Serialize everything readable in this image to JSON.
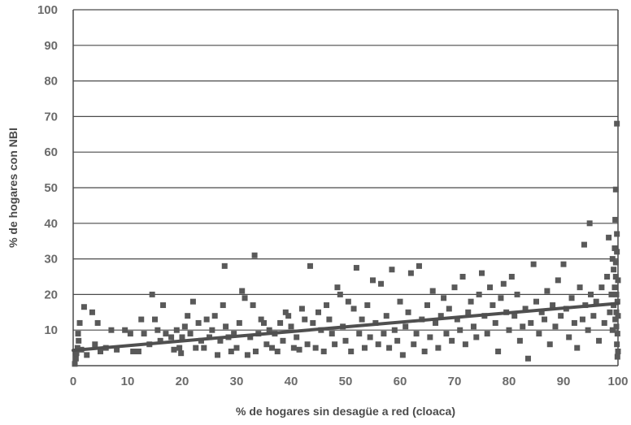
{
  "chart_data": {
    "type": "scatter",
    "title": "",
    "xlabel": "% de hogares sin desagüe a red (cloaca)",
    "ylabel": "% de hogares con NBI",
    "xlim": [
      0,
      100
    ],
    "ylim": [
      0,
      100
    ],
    "x_ticks": [
      "0",
      "10",
      "20",
      "30",
      "40",
      "50",
      "60",
      "70",
      "80",
      "90",
      "100"
    ],
    "y_ticks": [
      "10",
      "20",
      "30",
      "40",
      "50",
      "60",
      "70",
      "80",
      "90",
      "100"
    ],
    "grid": "horizontal",
    "colors": {
      "marker": "#595959",
      "trend": "#4f4f4f",
      "grid": "#4a4a4a",
      "text": "#6b6b6b"
    },
    "trendline": {
      "x": [
        0,
        100
      ],
      "y": [
        4.3,
        17.5
      ]
    },
    "points": [
      [
        0.3,
        0.5
      ],
      [
        0.5,
        2
      ],
      [
        0.6,
        3.5
      ],
      [
        0.8,
        5
      ],
      [
        1,
        7
      ],
      [
        0.9,
        9
      ],
      [
        1.2,
        12
      ],
      [
        1.5,
        4.5
      ],
      [
        2,
        16.5
      ],
      [
        2.5,
        3
      ],
      [
        3.5,
        15
      ],
      [
        4,
        6
      ],
      [
        4.5,
        12
      ],
      [
        5,
        4
      ],
      [
        6,
        5
      ],
      [
        7,
        10
      ],
      [
        8,
        4.5
      ],
      [
        9.5,
        10
      ],
      [
        10.5,
        9
      ],
      [
        11,
        4
      ],
      [
        12,
        4
      ],
      [
        12.5,
        13
      ],
      [
        13,
        9
      ],
      [
        14,
        6
      ],
      [
        14.5,
        20
      ],
      [
        15,
        13
      ],
      [
        15.5,
        10
      ],
      [
        16,
        7
      ],
      [
        16.5,
        17
      ],
      [
        17,
        9
      ],
      [
        18,
        8
      ],
      [
        18.5,
        4.5
      ],
      [
        19,
        10
      ],
      [
        19.5,
        5
      ],
      [
        19.8,
        3.5
      ],
      [
        20,
        8
      ],
      [
        20.5,
        11
      ],
      [
        21,
        14
      ],
      [
        21.5,
        9
      ],
      [
        22,
        18
      ],
      [
        22.5,
        5
      ],
      [
        23,
        12
      ],
      [
        23.5,
        7
      ],
      [
        24,
        5
      ],
      [
        24.5,
        13
      ],
      [
        25,
        8
      ],
      [
        25.5,
        10
      ],
      [
        26,
        14
      ],
      [
        26.5,
        3
      ],
      [
        27,
        7
      ],
      [
        27.5,
        17
      ],
      [
        27.8,
        28
      ],
      [
        28,
        11
      ],
      [
        28.5,
        8
      ],
      [
        29,
        4
      ],
      [
        29.5,
        9
      ],
      [
        30,
        5
      ],
      [
        30.5,
        12
      ],
      [
        31,
        21
      ],
      [
        31.5,
        19
      ],
      [
        32,
        3
      ],
      [
        32.5,
        8
      ],
      [
        33,
        17
      ],
      [
        33.3,
        31
      ],
      [
        33.5,
        4
      ],
      [
        34,
        9
      ],
      [
        34.5,
        13
      ],
      [
        35,
        12
      ],
      [
        35.5,
        6
      ],
      [
        36,
        10
      ],
      [
        36.5,
        5
      ],
      [
        37,
        9
      ],
      [
        37.5,
        4
      ],
      [
        38,
        12
      ],
      [
        38.5,
        7
      ],
      [
        39,
        15
      ],
      [
        39.5,
        14
      ],
      [
        40,
        11
      ],
      [
        40.5,
        5
      ],
      [
        41,
        8
      ],
      [
        41.5,
        4.5
      ],
      [
        42,
        16
      ],
      [
        42.5,
        13
      ],
      [
        43,
        6
      ],
      [
        43.5,
        28
      ],
      [
        44,
        12
      ],
      [
        44.5,
        5
      ],
      [
        45,
        15
      ],
      [
        45.5,
        10
      ],
      [
        46,
        4
      ],
      [
        46.5,
        17
      ],
      [
        47,
        13
      ],
      [
        47.5,
        9
      ],
      [
        48,
        6
      ],
      [
        48.5,
        22
      ],
      [
        49,
        20
      ],
      [
        49.5,
        11
      ],
      [
        50,
        7
      ],
      [
        50.5,
        18
      ],
      [
        51,
        4
      ],
      [
        51.5,
        16
      ],
      [
        52,
        27.5
      ],
      [
        52.5,
        9
      ],
      [
        53,
        13
      ],
      [
        53.5,
        5
      ],
      [
        54,
        17
      ],
      [
        54.5,
        8
      ],
      [
        55,
        24
      ],
      [
        55.5,
        12
      ],
      [
        56,
        6
      ],
      [
        56.5,
        23
      ],
      [
        57,
        9
      ],
      [
        57.5,
        14
      ],
      [
        58,
        5
      ],
      [
        58.5,
        27
      ],
      [
        59,
        10
      ],
      [
        59.5,
        7
      ],
      [
        60,
        18
      ],
      [
        60.5,
        3
      ],
      [
        61,
        11
      ],
      [
        61.5,
        15
      ],
      [
        62,
        26
      ],
      [
        62.5,
        6
      ],
      [
        63,
        9
      ],
      [
        63.5,
        28
      ],
      [
        64,
        13
      ],
      [
        64.5,
        4
      ],
      [
        65,
        17
      ],
      [
        65.5,
        8
      ],
      [
        66,
        21
      ],
      [
        66.5,
        12
      ],
      [
        67,
        5
      ],
      [
        67.5,
        14
      ],
      [
        68,
        19
      ],
      [
        68.5,
        9
      ],
      [
        69,
        16
      ],
      [
        69.5,
        7
      ],
      [
        70,
        22
      ],
      [
        70.5,
        13
      ],
      [
        71,
        10
      ],
      [
        71.5,
        25
      ],
      [
        72,
        6
      ],
      [
        72.5,
        15
      ],
      [
        73,
        18
      ],
      [
        73.5,
        11
      ],
      [
        74,
        8
      ],
      [
        74.5,
        20
      ],
      [
        75,
        26
      ],
      [
        75.5,
        14
      ],
      [
        76,
        9
      ],
      [
        76.5,
        22
      ],
      [
        77,
        17
      ],
      [
        77.5,
        12
      ],
      [
        78,
        4
      ],
      [
        78.5,
        19
      ],
      [
        79,
        23
      ],
      [
        79.5,
        15
      ],
      [
        80,
        10
      ],
      [
        80.5,
        25
      ],
      [
        81,
        14
      ],
      [
        81.5,
        20
      ],
      [
        82,
        7
      ],
      [
        82.5,
        11
      ],
      [
        83,
        16
      ],
      [
        83.5,
        2
      ],
      [
        84,
        12
      ],
      [
        84.5,
        28.5
      ],
      [
        85,
        18
      ],
      [
        85.5,
        9
      ],
      [
        86,
        15
      ],
      [
        86.5,
        13
      ],
      [
        87,
        21
      ],
      [
        87.5,
        6
      ],
      [
        88,
        17
      ],
      [
        88.5,
        11
      ],
      [
        89,
        24
      ],
      [
        89.5,
        14
      ],
      [
        90,
        28.5
      ],
      [
        90.5,
        16
      ],
      [
        91,
        8
      ],
      [
        91.5,
        19
      ],
      [
        92,
        12
      ],
      [
        92.5,
        5
      ],
      [
        93,
        22
      ],
      [
        93.5,
        13
      ],
      [
        93.8,
        34
      ],
      [
        94,
        17
      ],
      [
        94.5,
        10
      ],
      [
        94.8,
        40
      ],
      [
        95,
        20
      ],
      [
        95.5,
        14
      ],
      [
        96,
        18
      ],
      [
        96.5,
        7
      ],
      [
        97,
        22
      ],
      [
        97.5,
        12
      ],
      [
        98,
        25
      ],
      [
        98.3,
        36
      ],
      [
        98.5,
        15
      ],
      [
        98.8,
        20
      ],
      [
        99,
        30
      ],
      [
        99,
        10
      ],
      [
        99.2,
        27
      ],
      [
        99.2,
        17
      ],
      [
        99.4,
        33
      ],
      [
        99.4,
        22
      ],
      [
        99.5,
        13
      ],
      [
        99.5,
        41
      ],
      [
        99.6,
        49.5
      ],
      [
        99.6,
        29
      ],
      [
        99.6,
        25
      ],
      [
        99.7,
        20
      ],
      [
        99.7,
        15
      ],
      [
        99.7,
        11
      ],
      [
        99.8,
        68
      ],
      [
        99.8,
        37
      ],
      [
        99.8,
        32
      ],
      [
        99.8,
        6
      ],
      [
        99.9,
        2.5
      ],
      [
        99.9,
        9
      ],
      [
        99.9,
        18
      ],
      [
        100,
        24
      ],
      [
        100,
        14
      ],
      [
        100,
        4
      ]
    ]
  }
}
